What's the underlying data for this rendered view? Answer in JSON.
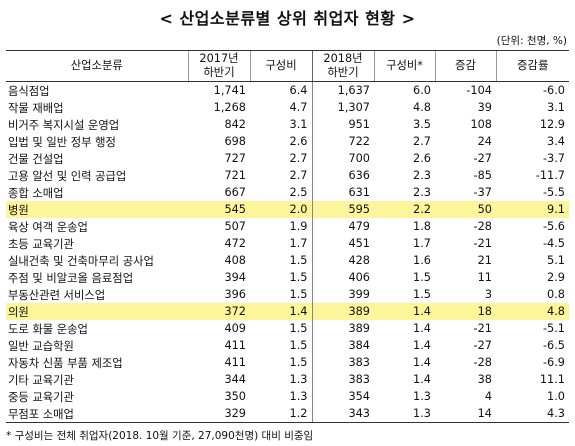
{
  "title": "< 산업소분류별 상위 취업자 현황 >",
  "unit": "(단위: 천명, %)",
  "headers": {
    "industry": "산업소분류",
    "y2017": "2017년\n하반기",
    "share2017": "구성비",
    "y2018": "2018년\n하반기",
    "share2018": "구성비*",
    "change": "증감",
    "rate": "증감률"
  },
  "rows": [
    {
      "name": "음식점업",
      "v17": "1,741",
      "s17": "6.4",
      "v18": "1,637",
      "s18": "6.0",
      "chg": "-104",
      "rate": "-6.0",
      "highlight": false
    },
    {
      "name": "작물 재배업",
      "v17": "1,268",
      "s17": "4.7",
      "v18": "1,307",
      "s18": "4.8",
      "chg": "39",
      "rate": "3.1",
      "highlight": false
    },
    {
      "name": "비거주 복지시설 운영업",
      "v17": "842",
      "s17": "3.1",
      "v18": "951",
      "s18": "3.5",
      "chg": "108",
      "rate": "12.9",
      "highlight": false
    },
    {
      "name": "입법 및 일반 정부 행정",
      "v17": "698",
      "s17": "2.6",
      "v18": "722",
      "s18": "2.7",
      "chg": "24",
      "rate": "3.4",
      "highlight": false
    },
    {
      "name": "건물 건설업",
      "v17": "727",
      "s17": "2.7",
      "v18": "700",
      "s18": "2.6",
      "chg": "-27",
      "rate": "-3.7",
      "highlight": false
    },
    {
      "name": "고용 알선 및 인력 공급업",
      "v17": "721",
      "s17": "2.7",
      "v18": "636",
      "s18": "2.3",
      "chg": "-85",
      "rate": "-11.7",
      "highlight": false
    },
    {
      "name": "종합 소매업",
      "v17": "667",
      "s17": "2.5",
      "v18": "631",
      "s18": "2.3",
      "chg": "-37",
      "rate": "-5.5",
      "highlight": false
    },
    {
      "name": "병원",
      "v17": "545",
      "s17": "2.0",
      "v18": "595",
      "s18": "2.2",
      "chg": "50",
      "rate": "9.1",
      "highlight": true
    },
    {
      "name": "육상 여객 운송업",
      "v17": "507",
      "s17": "1.9",
      "v18": "479",
      "s18": "1.8",
      "chg": "-28",
      "rate": "-5.6",
      "highlight": false
    },
    {
      "name": "초등 교육기관",
      "v17": "472",
      "s17": "1.7",
      "v18": "451",
      "s18": "1.7",
      "chg": "-21",
      "rate": "-4.5",
      "highlight": false
    },
    {
      "name": "실내건축 및 건축마무리 공사업",
      "v17": "408",
      "s17": "1.5",
      "v18": "428",
      "s18": "1.6",
      "chg": "21",
      "rate": "5.1",
      "highlight": false
    },
    {
      "name": "주점 및 비알코올 음료점업",
      "v17": "394",
      "s17": "1.5",
      "v18": "406",
      "s18": "1.5",
      "chg": "11",
      "rate": "2.9",
      "highlight": false
    },
    {
      "name": "부동산관련 서비스업",
      "v17": "396",
      "s17": "1.5",
      "v18": "399",
      "s18": "1.5",
      "chg": "3",
      "rate": "0.8",
      "highlight": false
    },
    {
      "name": "의원",
      "v17": "372",
      "s17": "1.4",
      "v18": "389",
      "s18": "1.4",
      "chg": "18",
      "rate": "4.8",
      "highlight": true
    },
    {
      "name": "도로 화물 운송업",
      "v17": "409",
      "s17": "1.5",
      "v18": "389",
      "s18": "1.4",
      "chg": "-21",
      "rate": "-5.1",
      "highlight": false
    },
    {
      "name": "일반 교습학원",
      "v17": "411",
      "s17": "1.5",
      "v18": "384",
      "s18": "1.4",
      "chg": "-27",
      "rate": "-6.5",
      "highlight": false
    },
    {
      "name": "자동차 신품 부품 제조업",
      "v17": "411",
      "s17": "1.5",
      "v18": "383",
      "s18": "1.4",
      "chg": "-28",
      "rate": "-6.9",
      "highlight": false
    },
    {
      "name": "기타 교육기관",
      "v17": "344",
      "s17": "1.3",
      "v18": "383",
      "s18": "1.4",
      "chg": "38",
      "rate": "11.1",
      "highlight": false
    },
    {
      "name": "중등 교육기관",
      "v17": "350",
      "s17": "1.3",
      "v18": "354",
      "s18": "1.3",
      "chg": "4",
      "rate": "1.0",
      "highlight": false
    },
    {
      "name": "무점포 소매업",
      "v17": "329",
      "s17": "1.2",
      "v18": "343",
      "s18": "1.3",
      "chg": "14",
      "rate": "4.3",
      "highlight": false
    }
  ],
  "footnote": "* 구성비는 전체 취업자(2018. 10월 기준, 27,090천명) 대비 비중임",
  "colors": {
    "highlight": "#fdf59a"
  }
}
